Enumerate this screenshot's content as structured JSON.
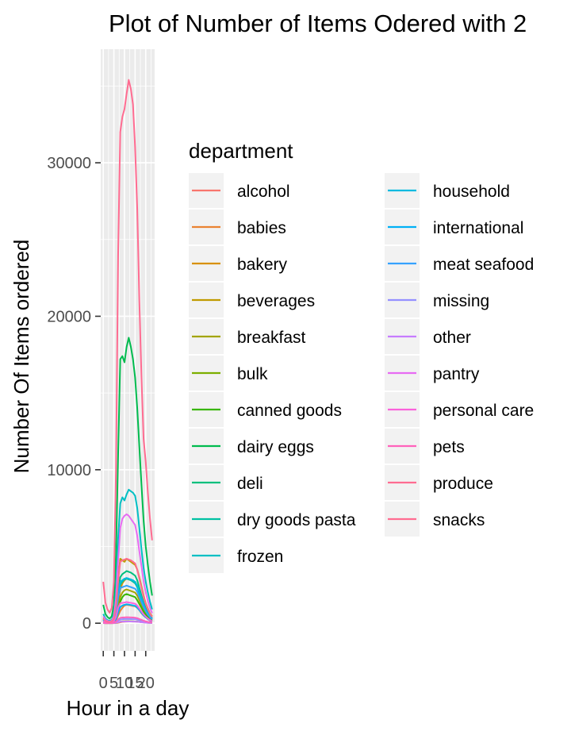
{
  "chart_data": {
    "type": "line",
    "title": "Plot of Number of Items Odered with 2",
    "xlabel": "Hour in a day",
    "ylabel": "Number Of Items ordered",
    "xlim": [
      -1.2,
      24.2
    ],
    "ylim": [
      -1800,
      37400
    ],
    "xticks": [
      0,
      5,
      10,
      15,
      20
    ],
    "xtick_labels": [
      "0",
      "5",
      "10",
      "15",
      "20"
    ],
    "yticks": [
      0,
      10000,
      20000,
      30000
    ],
    "ytick_labels": [
      "0",
      "10000",
      "20000",
      "30000"
    ],
    "grid": true,
    "panel_background": "#ebebeb",
    "legend": {
      "title": "department",
      "position": "right",
      "columns": 2
    },
    "x": [
      0,
      1,
      2,
      3,
      4,
      5,
      6,
      7,
      8,
      9,
      10,
      11,
      12,
      13,
      14,
      15,
      16,
      17,
      18,
      19,
      20,
      21,
      22,
      23
    ],
    "series": [
      {
        "name": "alcohol",
        "color": "#F8766D",
        "values": [
          10,
          5,
          3,
          2,
          2,
          5,
          12,
          30,
          60,
          85,
          100,
          110,
          115,
          112,
          110,
          108,
          100,
          90,
          75,
          60,
          45,
          35,
          25,
          15
        ]
      },
      {
        "name": "babies",
        "color": "#EA8331",
        "values": [
          60,
          30,
          20,
          15,
          20,
          60,
          200,
          500,
          800,
          1000,
          1150,
          1200,
          1180,
          1150,
          1120,
          1100,
          1000,
          850,
          650,
          500,
          380,
          280,
          180,
          110
        ]
      },
      {
        "name": "bakery",
        "color": "#D89000",
        "values": [
          150,
          80,
          50,
          40,
          60,
          150,
          500,
          1300,
          2200,
          2600,
          2800,
          2900,
          2850,
          2800,
          2750,
          2700,
          2400,
          2000,
          1600,
          1200,
          900,
          650,
          450,
          280
        ]
      },
      {
        "name": "beverages",
        "color": "#C09B00",
        "values": [
          350,
          180,
          120,
          90,
          130,
          350,
          1200,
          3000,
          4200,
          4100,
          4000,
          4200,
          4100,
          4000,
          3900,
          3800,
          3500,
          3000,
          2400,
          1800,
          1300,
          950,
          650,
          450
        ]
      },
      {
        "name": "breakfast",
        "color": "#A3A500",
        "values": [
          120,
          60,
          40,
          30,
          50,
          120,
          400,
          1000,
          1700,
          2000,
          2150,
          2200,
          2150,
          2100,
          2050,
          2000,
          1800,
          1500,
          1200,
          900,
          650,
          480,
          320,
          200
        ]
      },
      {
        "name": "bulk",
        "color": "#7CAE00",
        "values": [
          10,
          5,
          3,
          2,
          3,
          8,
          25,
          60,
          100,
          120,
          130,
          135,
          130,
          125,
          120,
          115,
          105,
          90,
          70,
          55,
          40,
          30,
          20,
          15
        ]
      },
      {
        "name": "canned goods",
        "color": "#39B600",
        "values": [
          100,
          50,
          35,
          25,
          40,
          100,
          350,
          850,
          1400,
          1700,
          1850,
          1900,
          1850,
          1800,
          1750,
          1700,
          1500,
          1250,
          1000,
          750,
          550,
          400,
          270,
          170
        ]
      },
      {
        "name": "dairy eggs",
        "color": "#00BB4E",
        "values": [
          1200,
          600,
          400,
          300,
          450,
          1200,
          4500,
          11000,
          17200,
          17400,
          17000,
          18000,
          18600,
          18000,
          17200,
          16000,
          14000,
          11500,
          9000,
          6700,
          5000,
          3800,
          2700,
          1800
        ]
      },
      {
        "name": "deli",
        "color": "#00BF7D",
        "values": [
          250,
          120,
          80,
          60,
          90,
          250,
          850,
          2100,
          3000,
          3200,
          3300,
          3400,
          3350,
          3300,
          3200,
          3100,
          2800,
          2300,
          1800,
          1350,
          1000,
          720,
          500,
          330
        ]
      },
      {
        "name": "dry goods pasta",
        "color": "#00C1A3",
        "values": [
          200,
          100,
          70,
          50,
          75,
          200,
          700,
          1700,
          2500,
          2700,
          2850,
          2900,
          2850,
          2800,
          2700,
          2600,
          2350,
          1950,
          1550,
          1150,
          850,
          620,
          420,
          280
        ]
      },
      {
        "name": "frozen",
        "color": "#00BFC4",
        "values": [
          600,
          300,
          200,
          150,
          220,
          600,
          2200,
          5500,
          7800,
          8200,
          8000,
          8400,
          8700,
          8600,
          8500,
          8300,
          7500,
          6200,
          4800,
          3600,
          2700,
          2000,
          1400,
          900
        ]
      },
      {
        "name": "household",
        "color": "#00BAE0",
        "values": [
          250,
          120,
          80,
          60,
          90,
          250,
          850,
          2000,
          2700,
          2800,
          2900,
          2950,
          2900,
          2850,
          2800,
          2700,
          2450,
          2050,
          1650,
          1250,
          900,
          650,
          450,
          300
        ]
      },
      {
        "name": "international",
        "color": "#00B0F6",
        "values": [
          80,
          40,
          25,
          20,
          30,
          80,
          280,
          700,
          1050,
          1150,
          1200,
          1230,
          1210,
          1190,
          1160,
          1130,
          1020,
          860,
          680,
          510,
          380,
          280,
          190,
          120
        ]
      },
      {
        "name": "meat seafood",
        "color": "#35A2FF",
        "values": [
          200,
          100,
          70,
          50,
          75,
          200,
          700,
          1700,
          2300,
          2350,
          2400,
          2450,
          2400,
          2350,
          2300,
          2250,
          2050,
          1700,
          1380,
          1050,
          780,
          560,
          390,
          260
        ]
      },
      {
        "name": "missing",
        "color": "#9590FF",
        "values": [
          20,
          10,
          7,
          5,
          8,
          20,
          70,
          170,
          240,
          260,
          275,
          280,
          275,
          270,
          265,
          260,
          235,
          195,
          155,
          115,
          85,
          62,
          43,
          28
        ]
      },
      {
        "name": "other",
        "color": "#C77CFF",
        "values": [
          10,
          5,
          3,
          2,
          3,
          9,
          30,
          70,
          100,
          110,
          115,
          118,
          116,
          113,
          110,
          107,
          97,
          81,
          64,
          48,
          35,
          26,
          18,
          12
        ]
      },
      {
        "name": "pantry",
        "color": "#E76BF3",
        "values": [
          450,
          220,
          150,
          110,
          160,
          450,
          1600,
          4000,
          6200,
          6800,
          7000,
          7100,
          7000,
          6800,
          6600,
          6400,
          5700,
          4700,
          3700,
          2750,
          2000,
          1450,
          1000,
          650
        ]
      },
      {
        "name": "personal care",
        "color": "#FA62DB",
        "values": [
          120,
          60,
          40,
          30,
          45,
          120,
          420,
          1000,
          1300,
          1320,
          1350,
          1380,
          1350,
          1330,
          1300,
          1270,
          1150,
          960,
          770,
          580,
          430,
          310,
          210,
          140
        ]
      },
      {
        "name": "pets",
        "color": "#FF62BC",
        "values": [
          30,
          15,
          10,
          8,
          12,
          30,
          100,
          250,
          350,
          370,
          380,
          390,
          385,
          380,
          370,
          360,
          330,
          275,
          220,
          165,
          120,
          88,
          60,
          40
        ]
      },
      {
        "name": "produce",
        "color": "#FF6C91",
        "values": [
          2700,
          1350,
          900,
          680,
          1000,
          2700,
          10000,
          24000,
          32000,
          33000,
          33500,
          34500,
          35400,
          34800,
          33800,
          31000,
          27000,
          21000,
          16000,
          12000,
          10500,
          8500,
          6800,
          5400
        ]
      },
      {
        "name": "snacks",
        "color": "#FF6C91",
        "values": [
          300,
          150,
          100,
          75,
          110,
          300,
          1100,
          2700,
          4000,
          4100,
          4150,
          4200,
          4150,
          4100,
          4000,
          3900,
          3500,
          2900,
          2300,
          1700,
          1250,
          900,
          620,
          410
        ]
      }
    ]
  }
}
